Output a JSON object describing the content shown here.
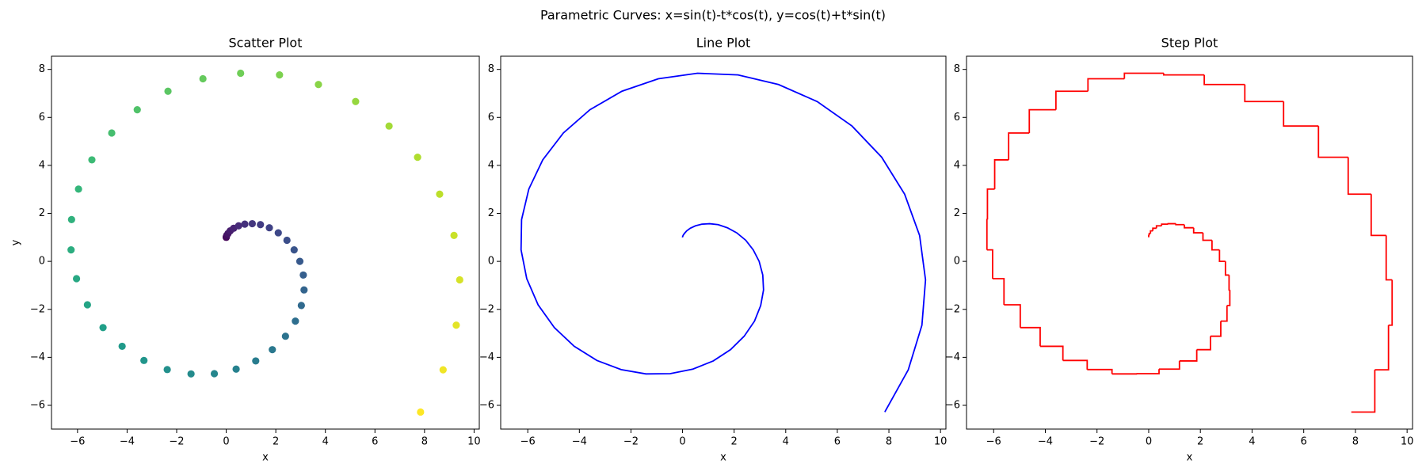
{
  "suptitle": "Parametric Curves: x=sin(t)-t*cos(t), y=cos(t)+t*sin(t)",
  "chart_data": [
    {
      "type": "scatter",
      "title": "Scatter Plot",
      "xlabel": "x",
      "ylabel": "y",
      "colormap": "viridis",
      "x": [
        0,
        0.0,
        0.02,
        0.07,
        0.16,
        0.3,
        0.5,
        0.75,
        1.05,
        1.38,
        1.74,
        2.1,
        2.45,
        2.74,
        2.97,
        3.11,
        3.14,
        3.03,
        2.79,
        2.39,
        1.86,
        1.19,
        0.4,
        -0.48,
        -1.42,
        -2.38,
        -3.32,
        -4.2,
        -4.97,
        -5.6,
        -6.04,
        -6.26,
        -6.24,
        -5.96,
        -5.42,
        -4.62,
        -3.59,
        -2.35,
        -0.94,
        0.58,
        2.15,
        3.72,
        5.22,
        6.57,
        7.72,
        8.61,
        9.19,
        9.42,
        9.28,
        8.75,
        7.84
      ],
      "y": [
        1,
        1.02,
        1.08,
        1.16,
        1.27,
        1.38,
        1.48,
        1.55,
        1.57,
        1.53,
        1.4,
        1.19,
        0.88,
        0.48,
        0.0,
        -0.57,
        -1.19,
        -1.84,
        -2.49,
        -3.12,
        -3.68,
        -4.15,
        -4.49,
        -4.68,
        -4.69,
        -4.51,
        -4.13,
        -3.54,
        -2.76,
        -1.81,
        -0.72,
        0.48,
        1.74,
        3.01,
        4.23,
        5.35,
        6.32,
        7.09,
        7.61,
        7.84,
        7.77,
        7.37,
        6.66,
        5.64,
        4.34,
        2.8,
        1.08,
        -0.77,
        -2.66,
        -4.52,
        -6.28
      ],
      "xlim": [
        -7.05,
        10.21
      ],
      "ylim": [
        -6.99,
        8.55
      ],
      "xticks": [
        {
          "value": -6,
          "label": "−6"
        },
        {
          "value": -4,
          "label": "−4"
        },
        {
          "value": -2,
          "label": "−2"
        },
        0,
        2,
        4,
        6,
        8,
        10
      ],
      "yticks": [
        {
          "value": -6,
          "label": "−6"
        },
        {
          "value": -4,
          "label": "−4"
        },
        {
          "value": -2,
          "label": "−2"
        },
        0,
        2,
        4,
        6,
        8
      ]
    },
    {
      "type": "line",
      "title": "Line Plot",
      "xlabel": "x",
      "color": "#0000ff",
      "x": [
        0,
        0.0,
        0.02,
        0.07,
        0.16,
        0.3,
        0.5,
        0.75,
        1.05,
        1.38,
        1.74,
        2.1,
        2.45,
        2.74,
        2.97,
        3.11,
        3.14,
        3.03,
        2.79,
        2.39,
        1.86,
        1.19,
        0.4,
        -0.48,
        -1.42,
        -2.38,
        -3.32,
        -4.2,
        -4.97,
        -5.6,
        -6.04,
        -6.26,
        -6.24,
        -5.96,
        -5.42,
        -4.62,
        -3.59,
        -2.35,
        -0.94,
        0.58,
        2.15,
        3.72,
        5.22,
        6.57,
        7.72,
        8.61,
        9.19,
        9.42,
        9.28,
        8.75,
        7.84
      ],
      "y": [
        1,
        1.02,
        1.08,
        1.16,
        1.27,
        1.38,
        1.48,
        1.55,
        1.57,
        1.53,
        1.4,
        1.19,
        0.88,
        0.48,
        0.0,
        -0.57,
        -1.19,
        -1.84,
        -2.49,
        -3.12,
        -3.68,
        -4.15,
        -4.49,
        -4.68,
        -4.69,
        -4.51,
        -4.13,
        -3.54,
        -2.76,
        -1.81,
        -0.72,
        0.48,
        1.74,
        3.01,
        4.23,
        5.35,
        6.32,
        7.09,
        7.61,
        7.84,
        7.77,
        7.37,
        6.66,
        5.64,
        4.34,
        2.8,
        1.08,
        -0.77,
        -2.66,
        -4.52,
        -6.28
      ],
      "xlim": [
        -7.05,
        10.21
      ],
      "ylim": [
        -6.99,
        8.55
      ],
      "xticks": [
        {
          "value": -6,
          "label": "−6"
        },
        {
          "value": -4,
          "label": "−4"
        },
        {
          "value": -2,
          "label": "−2"
        },
        0,
        2,
        4,
        6,
        8,
        10
      ],
      "yticks": [
        {
          "value": -6,
          "label": "−6"
        },
        {
          "value": -4,
          "label": "−4"
        },
        {
          "value": -2,
          "label": "−2"
        },
        0,
        2,
        4,
        6,
        8
      ]
    },
    {
      "type": "step",
      "title": "Step Plot",
      "xlabel": "x",
      "color": "#ff0000",
      "x": [
        0,
        0.0,
        0.02,
        0.07,
        0.16,
        0.3,
        0.5,
        0.75,
        1.05,
        1.38,
        1.74,
        2.1,
        2.45,
        2.74,
        2.97,
        3.11,
        3.14,
        3.03,
        2.79,
        2.39,
        1.86,
        1.19,
        0.4,
        -0.48,
        -1.42,
        -2.38,
        -3.32,
        -4.2,
        -4.97,
        -5.6,
        -6.04,
        -6.26,
        -6.24,
        -5.96,
        -5.42,
        -4.62,
        -3.59,
        -2.35,
        -0.94,
        0.58,
        2.15,
        3.72,
        5.22,
        6.57,
        7.72,
        8.61,
        9.19,
        9.42,
        9.28,
        8.75,
        7.84
      ],
      "y": [
        1,
        1.02,
        1.08,
        1.16,
        1.27,
        1.38,
        1.48,
        1.55,
        1.57,
        1.53,
        1.4,
        1.19,
        0.88,
        0.48,
        0.0,
        -0.57,
        -1.19,
        -1.84,
        -2.49,
        -3.12,
        -3.68,
        -4.15,
        -4.49,
        -4.68,
        -4.69,
        -4.51,
        -4.13,
        -3.54,
        -2.76,
        -1.81,
        -0.72,
        0.48,
        1.74,
        3.01,
        4.23,
        5.35,
        6.32,
        7.09,
        7.61,
        7.84,
        7.77,
        7.37,
        6.66,
        5.64,
        4.34,
        2.8,
        1.08,
        -0.77,
        -2.66,
        -4.52,
        -6.28
      ],
      "xlim": [
        -7.05,
        10.21
      ],
      "ylim": [
        -6.99,
        8.55
      ],
      "xticks": [
        {
          "value": -6,
          "label": "−6"
        },
        {
          "value": -4,
          "label": "−4"
        },
        {
          "value": -2,
          "label": "−2"
        },
        0,
        2,
        4,
        6,
        8,
        10
      ],
      "yticks": [
        {
          "value": -6,
          "label": "−6"
        },
        {
          "value": -4,
          "label": "−4"
        },
        {
          "value": -2,
          "label": "−2"
        },
        0,
        2,
        4,
        6,
        8
      ]
    }
  ]
}
